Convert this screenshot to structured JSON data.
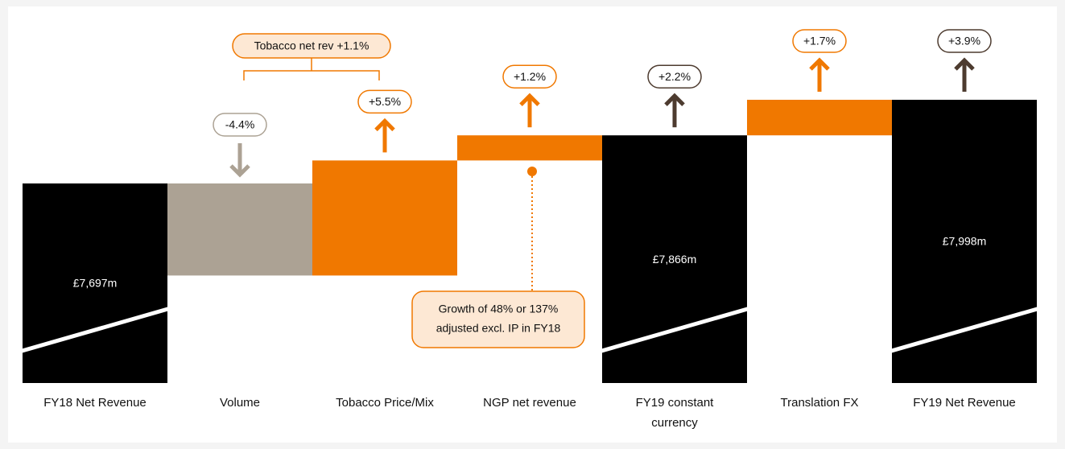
{
  "chart_data": {
    "type": "waterfall",
    "categories": [
      "FY18 Net Revenue",
      "Volume",
      "Tobacco Price/Mix",
      "NGP net revenue",
      "FY19 constant currency",
      "Translation FX",
      "FY19 Net Revenue"
    ],
    "measure": [
      "total",
      "relative",
      "relative",
      "relative",
      "total",
      "relative",
      "total"
    ],
    "values": [
      7697,
      -4.4,
      5.5,
      1.2,
      7866,
      1.7,
      7998
    ],
    "value_labels": [
      "£7,697m",
      "-4.4%",
      "+5.5%",
      "+1.2%",
      "£7,866m",
      "+1.7%",
      "£7,998m"
    ],
    "growth": [
      null,
      null,
      null,
      null,
      2.2,
      null,
      3.9
    ],
    "growth_labels": [
      null,
      null,
      null,
      null,
      "+2.2%",
      null,
      "+3.9%"
    ],
    "colors": {
      "total": "#000000",
      "decrease": "#aca294",
      "increase": "#f07800",
      "total_arrow": "#4d3b2f"
    },
    "annotations": [
      {
        "text": "Tobacco net rev +1.1%",
        "categories": [
          1,
          2
        ]
      },
      {
        "lines": [
          "Growth of 48% or 137%",
          "adjusted excl. IP in FY18"
        ],
        "category": 3
      }
    ]
  }
}
